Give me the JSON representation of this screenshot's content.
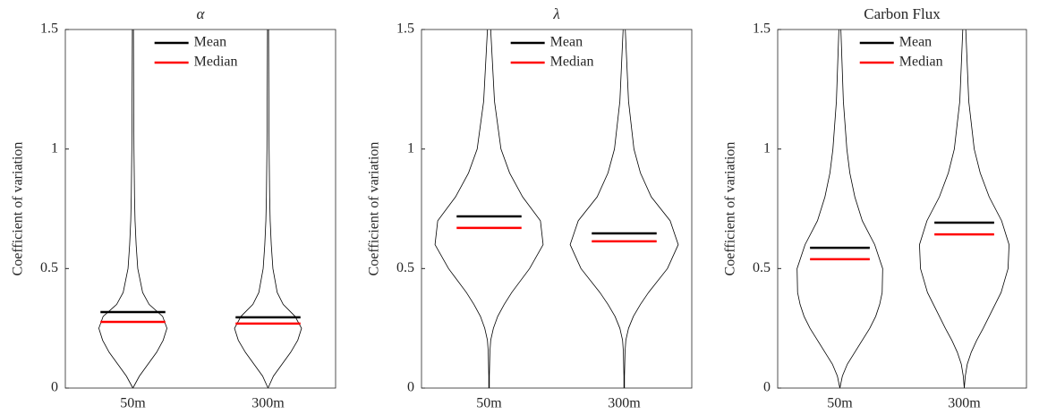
{
  "chart_data": [
    {
      "type": "violin",
      "title": "α",
      "ylabel": "Coefficient of variation",
      "categories": [
        "50m",
        "300m"
      ],
      "ylim": [
        0,
        1.5
      ],
      "yticks": [
        0,
        0.5,
        1,
        1.5
      ],
      "legend": "north",
      "series": [
        {
          "name": "Mean",
          "color": "#000000",
          "values": [
            0.318,
            0.296
          ]
        },
        {
          "name": "Median",
          "color": "#ff0000",
          "values": [
            0.277,
            0.27
          ]
        }
      ],
      "density_y": [
        0,
        0.05,
        0.1,
        0.15,
        0.2,
        0.25,
        0.3,
        0.35,
        0.4,
        0.5,
        0.6,
        0.7,
        0.8,
        0.9,
        1.0,
        1.2,
        1.5
      ],
      "density": [
        [
          0,
          0.12,
          0.28,
          0.44,
          0.56,
          0.63,
          0.55,
          0.3,
          0.18,
          0.09,
          0.06,
          0.04,
          0.03,
          0.025,
          0.02,
          0.015,
          0.01
        ],
        [
          0,
          0.1,
          0.26,
          0.42,
          0.55,
          0.62,
          0.5,
          0.28,
          0.17,
          0.09,
          0.06,
          0.04,
          0.03,
          0.025,
          0.02,
          0.015,
          0.01
        ]
      ]
    },
    {
      "type": "violin",
      "title": "λ",
      "ylabel": "Coefficient of variation",
      "categories": [
        "50m",
        "300m"
      ],
      "ylim": [
        0,
        1.5
      ],
      "yticks": [
        0,
        0.5,
        1,
        1.5
      ],
      "legend": "north",
      "series": [
        {
          "name": "Mean",
          "color": "#000000",
          "values": [
            0.718,
            0.647
          ]
        },
        {
          "name": "Median",
          "color": "#ff0000",
          "values": [
            0.67,
            0.614
          ]
        }
      ],
      "density_y": [
        0,
        0.05,
        0.1,
        0.15,
        0.2,
        0.25,
        0.3,
        0.35,
        0.4,
        0.5,
        0.6,
        0.7,
        0.8,
        0.9,
        1.0,
        1.2,
        1.5
      ],
      "density": [
        [
          0.005,
          0.005,
          0.01,
          0.015,
          0.03,
          0.08,
          0.16,
          0.28,
          0.42,
          0.75,
          1.0,
          0.95,
          0.62,
          0.38,
          0.22,
          0.1,
          0.03
        ],
        [
          0.005,
          0.005,
          0.01,
          0.015,
          0.03,
          0.08,
          0.17,
          0.3,
          0.45,
          0.8,
          1.0,
          0.85,
          0.5,
          0.3,
          0.18,
          0.08,
          0.02
        ]
      ]
    },
    {
      "type": "violin",
      "title": "Carbon Flux",
      "ylabel": "Coefficient of variation",
      "categories": [
        "50m",
        "300m"
      ],
      "ylim": [
        0,
        1.5
      ],
      "yticks": [
        0,
        0.5,
        1,
        1.5
      ],
      "legend": "north",
      "series": [
        {
          "name": "Mean",
          "color": "#000000",
          "values": [
            0.587,
            0.692
          ]
        },
        {
          "name": "Median",
          "color": "#ff0000",
          "values": [
            0.539,
            0.643
          ]
        }
      ],
      "density_y": [
        0,
        0.05,
        0.1,
        0.15,
        0.2,
        0.25,
        0.3,
        0.35,
        0.4,
        0.5,
        0.6,
        0.7,
        0.8,
        0.9,
        1.0,
        1.2,
        1.5
      ],
      "density": [
        [
          0,
          0.05,
          0.15,
          0.3,
          0.45,
          0.6,
          0.72,
          0.8,
          0.85,
          0.86,
          0.7,
          0.45,
          0.3,
          0.2,
          0.14,
          0.07,
          0.02
        ],
        [
          0,
          0.02,
          0.06,
          0.14,
          0.25,
          0.38,
          0.5,
          0.62,
          0.74,
          0.88,
          0.9,
          0.75,
          0.5,
          0.32,
          0.2,
          0.09,
          0.03
        ]
      ]
    }
  ]
}
